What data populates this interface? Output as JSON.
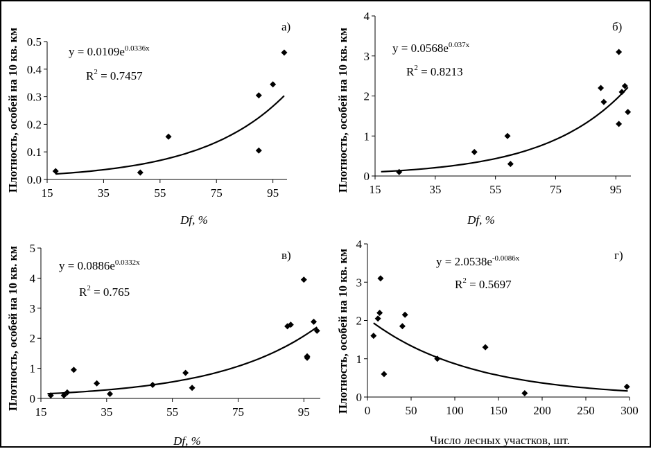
{
  "figure": {
    "background": "#ffffff",
    "ink": "#000000"
  },
  "chart_data": [
    {
      "type": "scatter",
      "panel_letter": "а)",
      "xlabel": "Df, %",
      "ylabel": "Плотность, особей на 10 кв. км",
      "xlim": [
        15,
        100
      ],
      "ylim": [
        0,
        0.5
      ],
      "xticks": [
        "15",
        "35",
        "55",
        "75",
        "95"
      ],
      "yticks": [
        "0.0",
        "0.1",
        "0.2",
        "0.3",
        "0.4",
        "0.5"
      ],
      "points": [
        [
          18,
          0.03
        ],
        [
          48,
          0.025
        ],
        [
          58,
          0.155
        ],
        [
          90,
          0.305
        ],
        [
          90,
          0.105
        ],
        [
          95,
          0.345
        ],
        [
          99,
          0.46
        ]
      ],
      "trend": {
        "kind": "exp",
        "a": 0.0109,
        "b": 0.0336,
        "x_from": 18,
        "x_to": 99
      },
      "equation_main": "y = 0.0109e",
      "equation_exp": "0.0336x",
      "r2_label": "R",
      "r2_exp": "2",
      "r2_value": " = 0.7457"
    },
    {
      "type": "scatter",
      "panel_letter": "б)",
      "xlabel": "Df, %",
      "ylabel": "Плотность, особей на 10 кв. км",
      "xlim": [
        15,
        100
      ],
      "ylim": [
        0,
        4
      ],
      "xticks": [
        "15",
        "35",
        "55",
        "75",
        "95"
      ],
      "yticks": [
        "0",
        "1",
        "2",
        "3",
        "4"
      ],
      "points": [
        [
          23,
          0.1
        ],
        [
          48,
          0.6
        ],
        [
          59,
          1.0
        ],
        [
          60,
          0.3
        ],
        [
          90,
          2.2
        ],
        [
          91,
          1.85
        ],
        [
          96,
          3.1
        ],
        [
          96,
          1.3
        ],
        [
          97,
          2.1
        ],
        [
          98,
          2.25
        ],
        [
          99,
          1.6
        ]
      ],
      "trend": {
        "kind": "exp",
        "a": 0.0568,
        "b": 0.037,
        "x_from": 17,
        "x_to": 99
      },
      "equation_main": "y = 0.0568e",
      "equation_exp": "0.037x",
      "r2_label": "R",
      "r2_exp": "2",
      "r2_value": " = 0.8213"
    },
    {
      "type": "scatter",
      "panel_letter": "в)",
      "xlabel": "Df, %",
      "ylabel": "Плотность, особей на 10 кв. км",
      "xlim": [
        15,
        100
      ],
      "ylim": [
        0,
        5
      ],
      "xticks": [
        "15",
        "35",
        "55",
        "75",
        "95"
      ],
      "yticks": [
        "0",
        "1",
        "2",
        "3",
        "4",
        "5"
      ],
      "points": [
        [
          18,
          0.1
        ],
        [
          22,
          0.1
        ],
        [
          23,
          0.2
        ],
        [
          25,
          0.95
        ],
        [
          32,
          0.5
        ],
        [
          36,
          0.15
        ],
        [
          49,
          0.45
        ],
        [
          59,
          0.85
        ],
        [
          61,
          0.35
        ],
        [
          90,
          2.4
        ],
        [
          91,
          2.45
        ],
        [
          95,
          3.95
        ],
        [
          96,
          1.35
        ],
        [
          96,
          1.4
        ],
        [
          98,
          2.55
        ],
        [
          99,
          2.25
        ]
      ],
      "trend": {
        "kind": "exp",
        "a": 0.0886,
        "b": 0.0332,
        "x_from": 17,
        "x_to": 99
      },
      "equation_main": "y = 0.0886e",
      "equation_exp": "0.0332x",
      "r2_label": "R",
      "r2_exp": "2",
      "r2_value": " = 0.765"
    },
    {
      "type": "scatter",
      "panel_letter": "г)",
      "xlabel": "Число лесных участков, шт.",
      "ylabel": "Плотность, особей на 10 кв. км",
      "xlim": [
        0,
        300
      ],
      "ylim": [
        0,
        4
      ],
      "xticks": [
        "0",
        "50",
        "100",
        "150",
        "200",
        "250",
        "300"
      ],
      "yticks": [
        "0",
        "1",
        "2",
        "3",
        "4"
      ],
      "points": [
        [
          7,
          1.6
        ],
        [
          12,
          2.05
        ],
        [
          14,
          2.2
        ],
        [
          15,
          3.1
        ],
        [
          19,
          0.6
        ],
        [
          40,
          1.85
        ],
        [
          43,
          2.15
        ],
        [
          80,
          1.0
        ],
        [
          135,
          1.3
        ],
        [
          180,
          0.1
        ],
        [
          297,
          0.27
        ]
      ],
      "trend": {
        "kind": "exp",
        "a": 2.0538,
        "b": -0.0086,
        "x_from": 7,
        "x_to": 298
      },
      "equation_main": "y = 2.0538e",
      "equation_exp": "-0.0086x",
      "r2_label": "R",
      "r2_exp": "2",
      "r2_value": " = 0.5697"
    }
  ]
}
